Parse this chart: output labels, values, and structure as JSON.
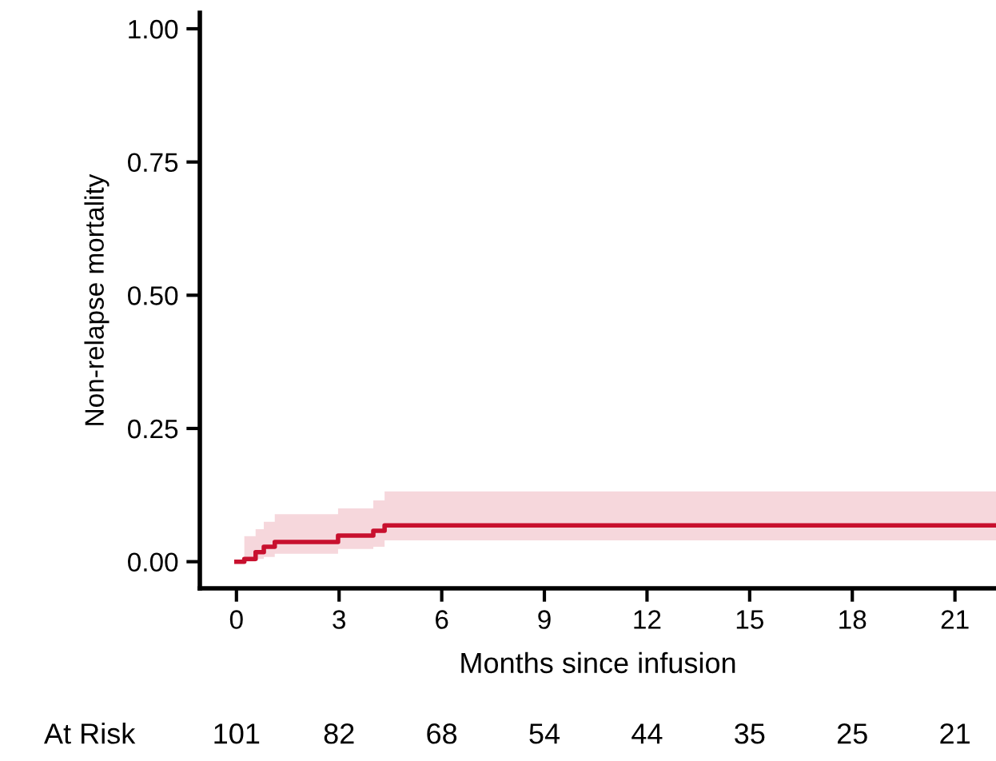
{
  "chart_data": {
    "type": "step",
    "xlabel": "Months since infusion",
    "ylabel": "Non-relapse mortality",
    "x": [
      0,
      0.23,
      0.56,
      0.8,
      1.12,
      2.97,
      4.0,
      4.33,
      22.2
    ],
    "series": [
      {
        "color": "#c8102e",
        "values": [
          0,
          0.005,
          0.018,
          0.028,
          0.037,
          0.049,
          0.058,
          0.068,
          0.068
        ],
        "lower": [
          0,
          0,
          0.005,
          0.009,
          0.015,
          0.024,
          0.028,
          0.04,
          0.04
        ],
        "upper": [
          0,
          0.048,
          0.061,
          0.075,
          0.089,
          0.1,
          0.115,
          0.132,
          0.132
        ]
      }
    ],
    "xlim": [
      -1.07,
      22.2
    ],
    "ylim": [
      -0.05,
      1.03
    ],
    "xticks": [
      0,
      3,
      6,
      9,
      12,
      15,
      18,
      21
    ],
    "yticks": [
      {
        "value": 0,
        "label": "0.00"
      },
      {
        "value": 0.25,
        "label": "0.25"
      },
      {
        "value": 0.5,
        "label": "0.50"
      },
      {
        "value": 0.75,
        "label": "0.75"
      },
      {
        "value": 1,
        "label": "1.00"
      }
    ],
    "annotations": [
      "At Risk",
      "101",
      "82",
      "68",
      "54",
      "44",
      "35",
      "25",
      "21"
    ],
    "grid": false,
    "legend": false
  }
}
